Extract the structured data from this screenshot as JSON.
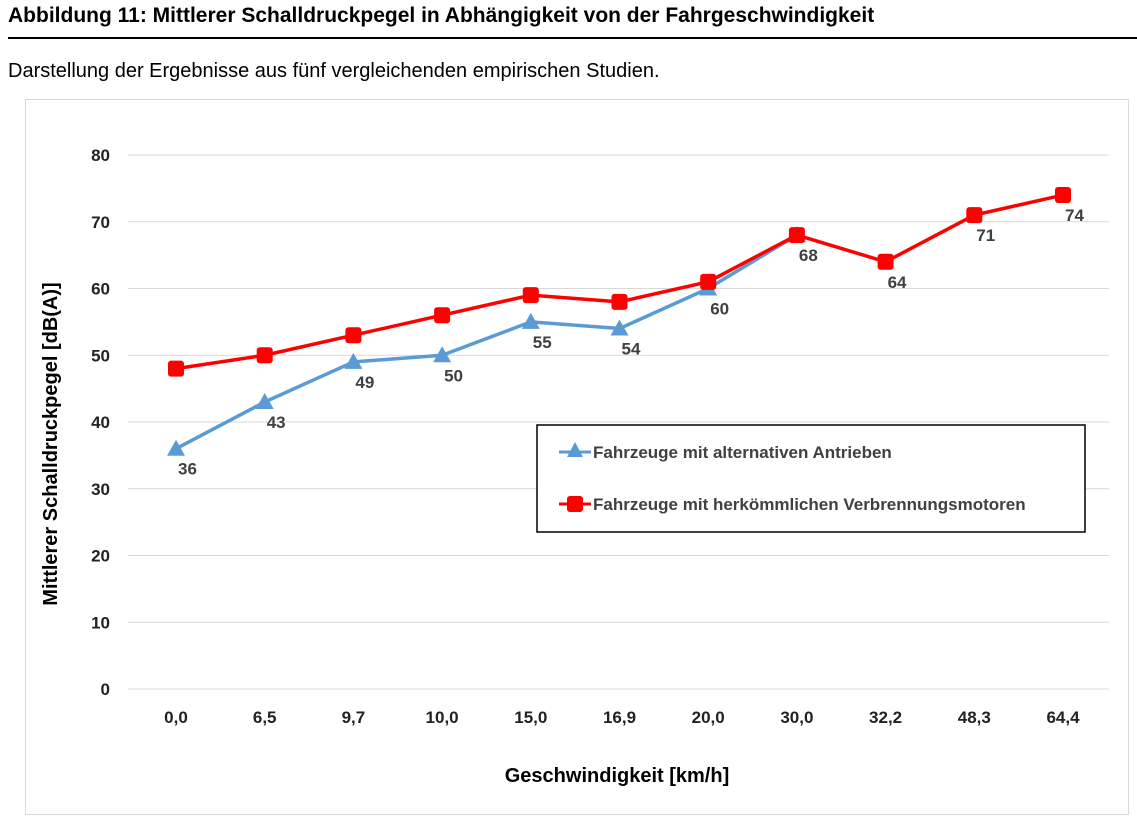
{
  "figure": {
    "title": "Abbildung 11: Mittlerer Schalldruckpegel in Abhängigkeit von der Fahrgeschwindigkeit",
    "caption": "Darstellung der Ergebnisse aus fünf vergleichenden empirischen Studien."
  },
  "chart_data": {
    "type": "line",
    "title": "",
    "xlabel": "Geschwindigkeit [km/h]",
    "ylabel": "Mittlerer Schalldruckpegel [dB(A)]",
    "ylim": [
      0,
      80
    ],
    "yticks": [
      "0",
      "10",
      "20",
      "30",
      "40",
      "50",
      "60",
      "70",
      "80"
    ],
    "grid": true,
    "legend_position": "lower-right",
    "categories": [
      "0,0",
      "6,5",
      "9,7",
      "10,0",
      "15,0",
      "16,9",
      "20,0",
      "30,0",
      "32,2",
      "48,3",
      "64,4"
    ],
    "series": [
      {
        "name": "Fahrzeuge mit alternativen Antrieben",
        "color": "#5b9bd5",
        "marker": "triangle",
        "values": [
          36,
          43,
          49,
          50,
          55,
          54,
          60,
          68,
          null,
          null,
          null
        ]
      },
      {
        "name": "Fahrzeuge mit herkömmlichen Verbrennungsmotoren",
        "color": "#ff0000",
        "marker": "square",
        "values": [
          48,
          50,
          53,
          56,
          59,
          58,
          61,
          68,
          64,
          71,
          74
        ]
      }
    ],
    "data_labels": [
      "36",
      "43",
      "49",
      "50",
      "55",
      "54",
      "60",
      "68",
      "64",
      "71",
      "74"
    ]
  }
}
